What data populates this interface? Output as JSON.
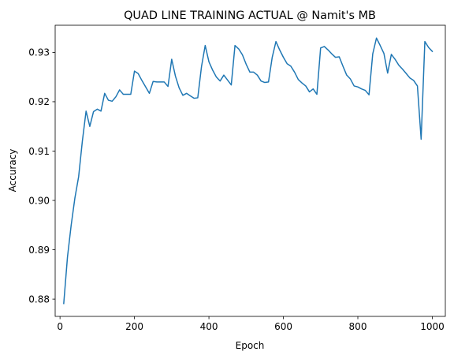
{
  "chart_data": {
    "type": "line",
    "title": "QUAD LINE TRAINING ACTUAL @ Namit's MB",
    "xlabel": "Epoch",
    "ylabel": "Accuracy",
    "xlim": [
      -13,
      1035
    ],
    "ylim": [
      0.8765,
      0.9355
    ],
    "xticks": [
      0,
      200,
      400,
      600,
      800,
      1000
    ],
    "yticks": [
      0.88,
      0.89,
      0.9,
      0.91,
      0.92,
      0.93
    ],
    "xtick_labels": [
      "0",
      "200",
      "400",
      "600",
      "800",
      "1000"
    ],
    "ytick_labels": [
      "0.88",
      "0.89",
      "0.90",
      "0.91",
      "0.92",
      "0.93"
    ],
    "grid": false,
    "series": [
      {
        "color": "#1f77b4",
        "x": [
          10,
          20,
          30,
          40,
          50,
          60,
          70,
          80,
          90,
          100,
          110,
          120,
          130,
          140,
          150,
          160,
          170,
          180,
          190,
          200,
          210,
          220,
          230,
          240,
          250,
          260,
          270,
          280,
          290,
          300,
          310,
          320,
          330,
          340,
          350,
          360,
          370,
          380,
          390,
          400,
          410,
          420,
          430,
          440,
          450,
          460,
          470,
          480,
          490,
          500,
          510,
          520,
          530,
          540,
          550,
          560,
          570,
          580,
          590,
          600,
          610,
          620,
          630,
          640,
          650,
          660,
          670,
          680,
          690,
          700,
          710,
          720,
          730,
          740,
          750,
          760,
          770,
          780,
          790,
          800,
          810,
          820,
          830,
          840,
          850,
          860,
          870,
          880,
          890,
          900,
          910,
          920,
          930,
          940,
          950,
          960,
          970,
          980,
          990,
          1000
        ],
        "y": [
          0.8791,
          0.8885,
          0.895,
          0.9005,
          0.9048,
          0.912,
          0.9181,
          0.915,
          0.918,
          0.9185,
          0.9181,
          0.9217,
          0.9203,
          0.9201,
          0.921,
          0.9224,
          0.9215,
          0.9215,
          0.9215,
          0.9262,
          0.9257,
          0.9243,
          0.923,
          0.9217,
          0.9241,
          0.924,
          0.924,
          0.924,
          0.9231,
          0.9286,
          0.9252,
          0.9228,
          0.9213,
          0.9217,
          0.9212,
          0.9207,
          0.9208,
          0.9271,
          0.9314,
          0.9281,
          0.9264,
          0.925,
          0.9242,
          0.9254,
          0.9244,
          0.9234,
          0.9314,
          0.9307,
          0.9295,
          0.9276,
          0.926,
          0.926,
          0.9254,
          0.9242,
          0.9239,
          0.924,
          0.929,
          0.9322,
          0.9305,
          0.929,
          0.9277,
          0.9272,
          0.926,
          0.9245,
          0.9238,
          0.9232,
          0.922,
          0.9226,
          0.9215,
          0.9309,
          0.9312,
          0.9305,
          0.9297,
          0.929,
          0.9291,
          0.9272,
          0.9254,
          0.9246,
          0.9232,
          0.923,
          0.9226,
          0.9223,
          0.9214,
          0.9297,
          0.9329,
          0.9314,
          0.9298,
          0.9258,
          0.9296,
          0.9286,
          0.9274,
          0.9266,
          0.9257,
          0.9248,
          0.9243,
          0.9232,
          0.9124,
          0.9322,
          0.931,
          0.9302
        ]
      }
    ]
  }
}
